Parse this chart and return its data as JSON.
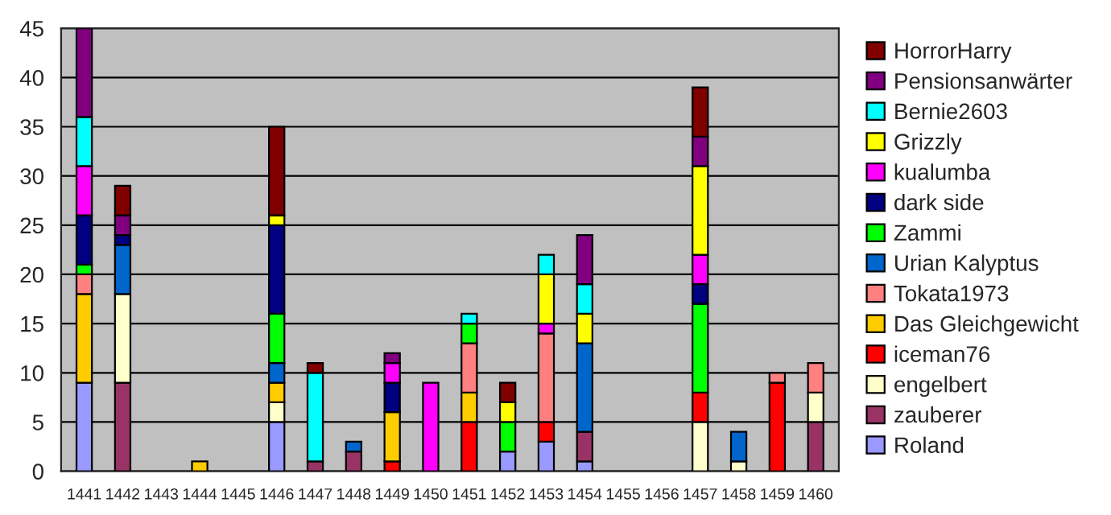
{
  "chart_data": {
    "type": "bar",
    "stacked": true,
    "categories": [
      "1441",
      "1442",
      "1443",
      "1444",
      "1445",
      "1446",
      "1447",
      "1448",
      "1449",
      "1450",
      "1451",
      "1452",
      "1453",
      "1454",
      "1455",
      "1456",
      "1457",
      "1458",
      "1459",
      "1460"
    ],
    "series": [
      {
        "name": "Roland",
        "color": "#9999ff",
        "values": [
          9,
          null,
          null,
          null,
          null,
          5,
          null,
          null,
          null,
          null,
          null,
          2,
          3,
          1,
          null,
          null,
          null,
          null,
          null,
          null
        ]
      },
      {
        "name": "zauberer",
        "color": "#993366",
        "values": [
          null,
          9,
          null,
          null,
          null,
          null,
          1,
          2,
          null,
          null,
          null,
          null,
          null,
          3,
          null,
          null,
          null,
          null,
          null,
          5
        ]
      },
      {
        "name": "engelbert",
        "color": "#ffffcc",
        "values": [
          null,
          9,
          null,
          null,
          null,
          2,
          null,
          null,
          null,
          null,
          null,
          null,
          null,
          null,
          null,
          null,
          5,
          1,
          null,
          3
        ]
      },
      {
        "name": "iceman76",
        "color": "#ff0000",
        "values": [
          null,
          null,
          null,
          null,
          null,
          null,
          null,
          null,
          1,
          null,
          5,
          null,
          2,
          null,
          null,
          null,
          3,
          null,
          9,
          null
        ]
      },
      {
        "name": "Das Gleichgewicht",
        "color": "#ffcc00",
        "values": [
          9,
          null,
          null,
          1,
          null,
          2,
          null,
          null,
          5,
          null,
          3,
          null,
          null,
          null,
          null,
          null,
          null,
          null,
          null,
          null
        ]
      },
      {
        "name": "Tokata1973",
        "color": "#ff8080",
        "values": [
          2,
          null,
          null,
          null,
          null,
          null,
          null,
          null,
          null,
          null,
          5,
          null,
          9,
          null,
          null,
          null,
          null,
          null,
          1,
          3
        ]
      },
      {
        "name": "Urian Kalyptus",
        "color": "#0066cc",
        "values": [
          null,
          5,
          null,
          null,
          null,
          2,
          null,
          1,
          null,
          null,
          null,
          null,
          null,
          9,
          null,
          null,
          null,
          3,
          null,
          null
        ]
      },
      {
        "name": "Zammi",
        "color": "#00ff00",
        "values": [
          1,
          null,
          null,
          null,
          null,
          5,
          null,
          null,
          null,
          null,
          2,
          3,
          null,
          null,
          null,
          null,
          9,
          null,
          null,
          null
        ]
      },
      {
        "name": "dark side",
        "color": "#000080",
        "values": [
          5,
          1,
          null,
          null,
          null,
          9,
          null,
          null,
          3,
          null,
          null,
          null,
          null,
          null,
          null,
          null,
          2,
          null,
          null,
          null
        ]
      },
      {
        "name": "kualumba",
        "color": "#ff00ff",
        "values": [
          5,
          null,
          null,
          null,
          null,
          null,
          null,
          null,
          2,
          9,
          null,
          null,
          1,
          null,
          null,
          null,
          3,
          null,
          null,
          null
        ]
      },
      {
        "name": "Grizzly",
        "color": "#ffff00",
        "values": [
          null,
          null,
          null,
          null,
          null,
          1,
          null,
          null,
          null,
          null,
          null,
          2,
          5,
          3,
          null,
          null,
          9,
          null,
          null,
          null
        ]
      },
      {
        "name": "Bernie2603",
        "color": "#00ffff",
        "values": [
          5,
          null,
          null,
          null,
          null,
          null,
          9,
          null,
          null,
          null,
          1,
          null,
          2,
          3,
          null,
          null,
          null,
          null,
          null,
          null
        ]
      },
      {
        "name": "Pensionsanwärter",
        "color": "#800080",
        "values": [
          9,
          2,
          null,
          null,
          null,
          null,
          null,
          null,
          1,
          null,
          null,
          null,
          null,
          5,
          null,
          null,
          3,
          null,
          null,
          null
        ]
      },
      {
        "name": "HorrorHarry",
        "color": "#800000",
        "values": [
          null,
          3,
          null,
          null,
          null,
          9,
          1,
          null,
          null,
          null,
          null,
          2,
          null,
          null,
          null,
          null,
          5,
          null,
          null,
          null
        ]
      }
    ],
    "ylim": [
      0,
      45
    ],
    "yticks": [
      0,
      5,
      10,
      15,
      20,
      25,
      30,
      35,
      40,
      45
    ],
    "grid": "y",
    "legend": "right"
  }
}
